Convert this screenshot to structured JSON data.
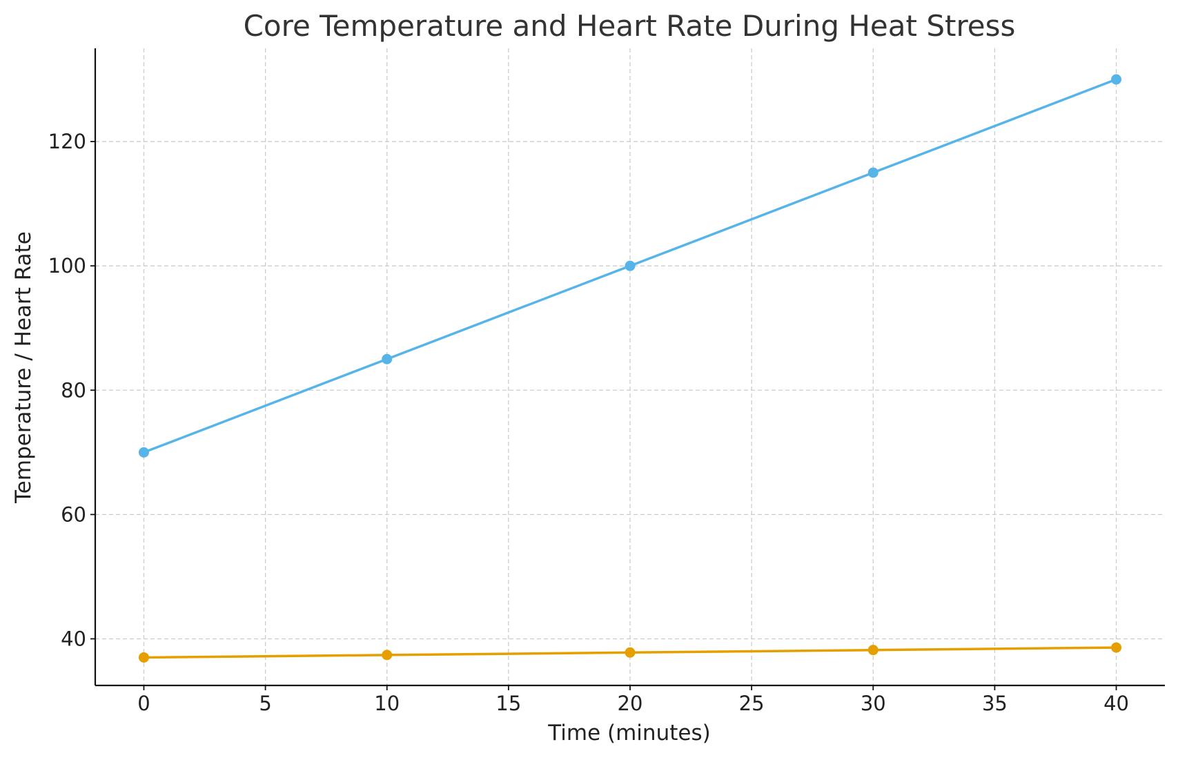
{
  "chart_data": {
    "type": "line",
    "title": "Core Temperature and Heart Rate During Heat Stress",
    "xlabel": "Time (minutes)",
    "ylabel": "Temperature / Heart Rate",
    "x": [
      0,
      10,
      20,
      30,
      40
    ],
    "xlim": [
      -2,
      42
    ],
    "ylim": [
      32.5,
      135
    ],
    "xticks": [
      0,
      5,
      10,
      15,
      20,
      25,
      30,
      35,
      40
    ],
    "yticks": [
      40,
      60,
      80,
      100,
      120
    ],
    "grid": true,
    "series": [
      {
        "values": [
          70,
          85,
          100,
          115,
          130
        ],
        "color": "#56b4e9",
        "marker": "circle"
      },
      {
        "values": [
          37.0,
          37.4,
          37.8,
          38.2,
          38.6
        ],
        "color": "#e69f00",
        "marker": "circle"
      }
    ]
  }
}
